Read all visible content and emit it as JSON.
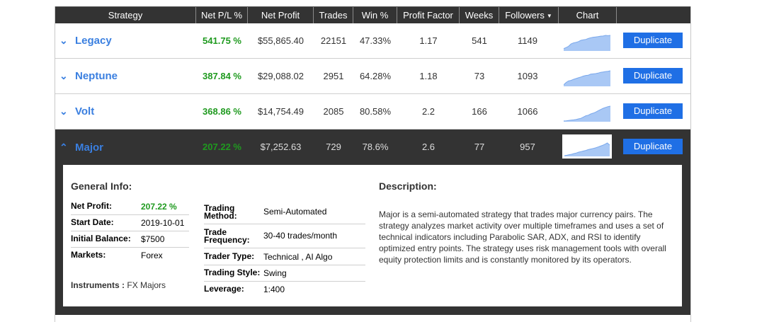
{
  "headers": [
    "Strategy",
    "Net P/L %",
    "Net Profit",
    "Trades",
    "Win %",
    "Profit Factor",
    "Weeks",
    "Followers",
    "Chart",
    ""
  ],
  "followers_sort_icon": "caret-down-icon",
  "strategies": [
    {
      "name": "Legacy",
      "expand_icon": "chevron-down-icon",
      "net_pl": "541.75 %",
      "net_profit": "$55,865.40",
      "trades": "22151",
      "win": "47.33%",
      "profit_factor": "1.17",
      "weeks": "541",
      "followers": "1149",
      "button": "Duplicate",
      "spark": [
        0.15,
        0.22,
        0.3,
        0.45,
        0.52,
        0.55,
        0.6,
        0.68,
        0.72,
        0.74,
        0.8,
        0.85,
        0.88,
        0.9,
        0.92,
        0.95,
        0.96,
        1.0,
        0.98,
        1.0
      ]
    },
    {
      "name": "Neptune",
      "expand_icon": "chevron-down-icon",
      "net_pl": "387.84 %",
      "net_profit": "$29,088.02",
      "trades": "2951",
      "win": "64.28%",
      "profit_factor": "1.18",
      "weeks": "73",
      "followers": "1093",
      "button": "Duplicate",
      "spark": [
        0.1,
        0.25,
        0.35,
        0.38,
        0.45,
        0.5,
        0.55,
        0.6,
        0.66,
        0.7,
        0.72,
        0.78,
        0.8,
        0.82,
        0.85,
        0.9,
        0.92,
        0.95,
        0.97,
        1.0
      ]
    },
    {
      "name": "Volt",
      "expand_icon": "chevron-down-icon",
      "net_pl": "368.86 %",
      "net_profit": "$14,754.49",
      "trades": "2085",
      "win": "80.58%",
      "profit_factor": "2.2",
      "weeks": "166",
      "followers": "1066",
      "button": "Duplicate",
      "spark": [
        0.05,
        0.06,
        0.08,
        0.1,
        0.12,
        0.14,
        0.18,
        0.22,
        0.3,
        0.38,
        0.42,
        0.5,
        0.55,
        0.62,
        0.7,
        0.78,
        0.86,
        0.92,
        0.97,
        1.0
      ]
    },
    {
      "name": "Major",
      "expand_icon": "chevron-up-icon",
      "net_pl": "207.22 %",
      "net_profit": "$7,252.63",
      "trades": "729",
      "win": "78.6%",
      "profit_factor": "2.6",
      "weeks": "77",
      "followers": "957",
      "button": "Duplicate",
      "spark": [
        0.05,
        0.08,
        0.12,
        0.15,
        0.2,
        0.24,
        0.3,
        0.34,
        0.38,
        0.42,
        0.48,
        0.52,
        0.56,
        0.6,
        0.66,
        0.72,
        0.78,
        0.86,
        0.95,
        0.8
      ]
    }
  ],
  "details": {
    "general_title": "General Info:",
    "net_profit_label": "Net Profit:",
    "net_profit_value": "207.22 %",
    "start_date_label": "Start Date:",
    "start_date_value": "2019-10-01",
    "initial_balance_label": "Initial Balance:",
    "initial_balance_value": "$7500",
    "markets_label": "Markets:",
    "markets_value": "Forex",
    "instruments_label": "Instruments :",
    "instruments_value": "FX Majors",
    "trading_method_label_1": "Trading",
    "trading_method_label_2": "Method:",
    "trading_method_value": "Semi-Automated",
    "trade_frequency_label_1": "Trade",
    "trade_frequency_label_2": "Frequency:",
    "trade_frequency_value": "30-40 trades/month",
    "trader_type_label": "Trader Type:",
    "trader_type_value": "Technical , AI Algo",
    "trading_style_label": "Trading Style:",
    "trading_style_value": "Swing",
    "leverage_label": "Leverage:",
    "leverage_value": "1:400",
    "description_title": "Description:",
    "description_text": "Major is a semi-automated strategy that trades major currency pairs. The strategy analyzes market activity over multiple timeframes and uses a set of technical indicators including Parabolic SAR, ADX, and RSI to identify optimized entry points. The strategy uses risk management tools with overall equity protection limits and is constantly monitored by its operators."
  },
  "colors": {
    "header_bg": "#333333",
    "accent_blue": "#3a7fe0",
    "button_blue": "#1f6fe5",
    "profit_green": "#1f9a1f",
    "spark_fill": "#a9c8f5",
    "spark_line": "#7aa8ec"
  }
}
